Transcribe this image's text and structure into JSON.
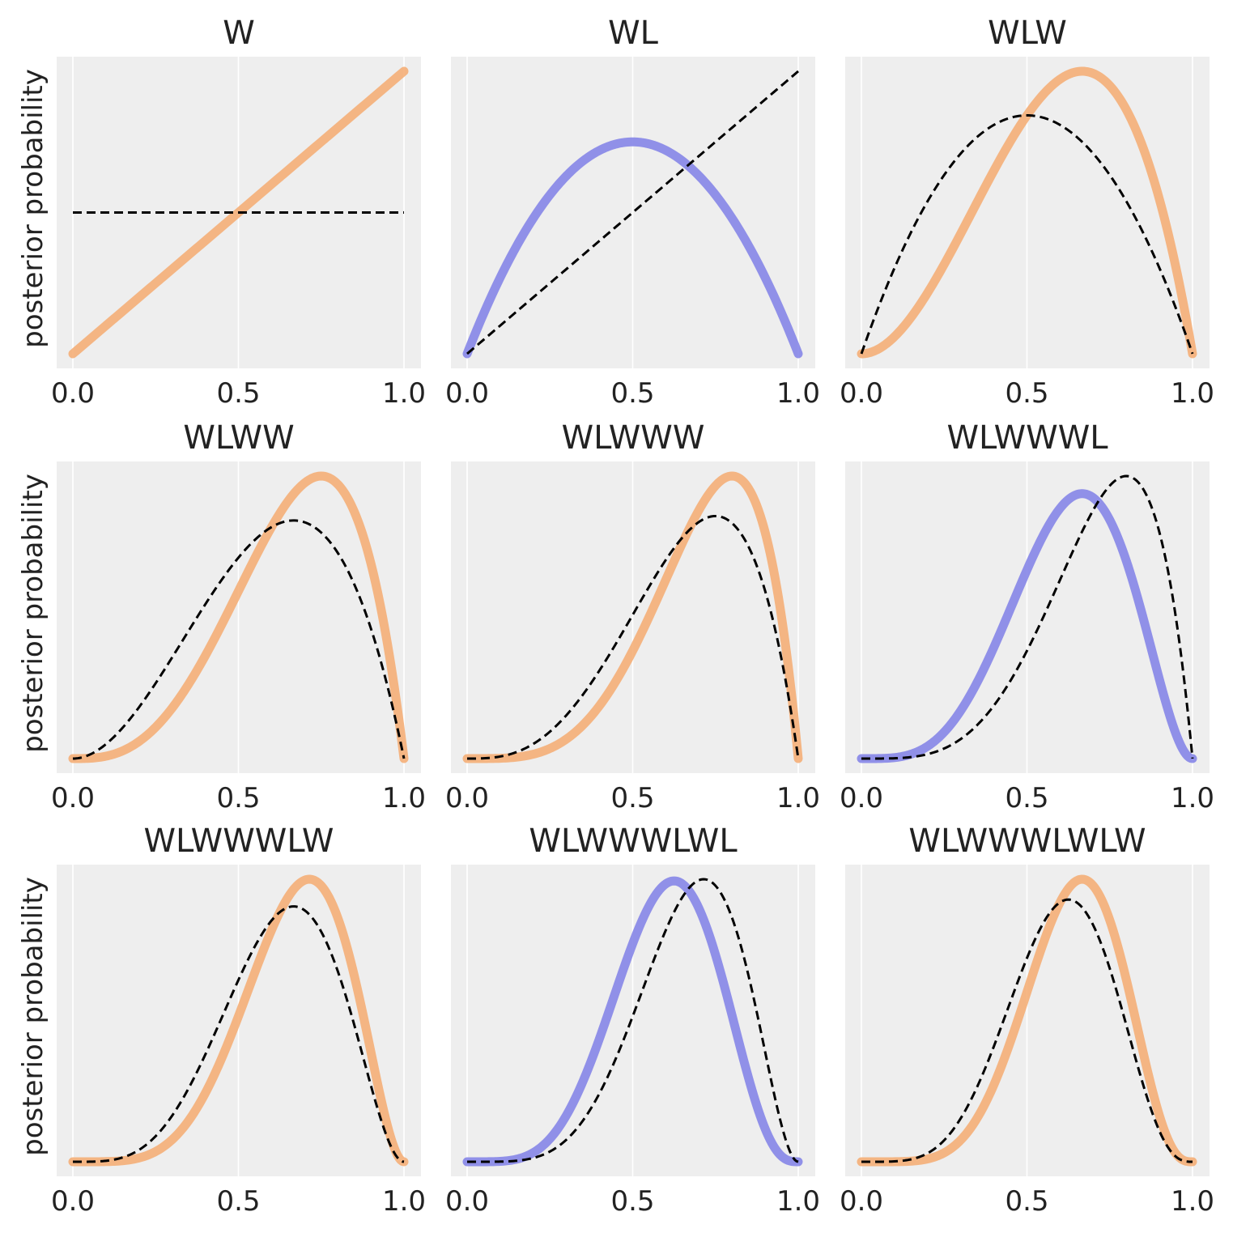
{
  "chart_data": [
    {
      "type": "line",
      "title": "W",
      "ylabel": "posterior probability",
      "xlim": [
        0,
        1
      ],
      "xticks": [
        "0.0",
        "0.5",
        "1.0"
      ],
      "grid": true,
      "observation": "W",
      "prior": {
        "w": 0,
        "l": 0
      },
      "posterior": {
        "w": 1,
        "l": 0
      },
      "curve_color": "#f4aa70",
      "prior_color": "#000000"
    },
    {
      "type": "line",
      "title": "WL",
      "ylabel": "",
      "xlim": [
        0,
        1
      ],
      "xticks": [
        "0.0",
        "0.5",
        "1.0"
      ],
      "grid": true,
      "observation": "L",
      "prior": {
        "w": 1,
        "l": 0
      },
      "posterior": {
        "w": 1,
        "l": 1
      },
      "curve_color": "#7f7fe6",
      "prior_color": "#000000"
    },
    {
      "type": "line",
      "title": "WLW",
      "ylabel": "",
      "xlim": [
        0,
        1
      ],
      "xticks": [
        "0.0",
        "0.5",
        "1.0"
      ],
      "grid": true,
      "observation": "W",
      "prior": {
        "w": 1,
        "l": 1
      },
      "posterior": {
        "w": 2,
        "l": 1
      },
      "curve_color": "#f4aa70",
      "prior_color": "#000000"
    },
    {
      "type": "line",
      "title": "WLWW",
      "ylabel": "posterior probability",
      "xlim": [
        0,
        1
      ],
      "xticks": [
        "0.0",
        "0.5",
        "1.0"
      ],
      "grid": true,
      "observation": "W",
      "prior": {
        "w": 2,
        "l": 1
      },
      "posterior": {
        "w": 3,
        "l": 1
      },
      "curve_color": "#f4aa70",
      "prior_color": "#000000"
    },
    {
      "type": "line",
      "title": "WLWWW",
      "ylabel": "",
      "xlim": [
        0,
        1
      ],
      "xticks": [
        "0.0",
        "0.5",
        "1.0"
      ],
      "grid": true,
      "observation": "W",
      "prior": {
        "w": 3,
        "l": 1
      },
      "posterior": {
        "w": 4,
        "l": 1
      },
      "curve_color": "#f4aa70",
      "prior_color": "#000000"
    },
    {
      "type": "line",
      "title": "WLWWWL",
      "ylabel": "",
      "xlim": [
        0,
        1
      ],
      "xticks": [
        "0.0",
        "0.5",
        "1.0"
      ],
      "grid": true,
      "observation": "L",
      "prior": {
        "w": 4,
        "l": 1
      },
      "posterior": {
        "w": 4,
        "l": 2
      },
      "curve_color": "#7f7fe6",
      "prior_color": "#000000"
    },
    {
      "type": "line",
      "title": "WLWWWLW",
      "ylabel": "posterior probability",
      "xlim": [
        0,
        1
      ],
      "xticks": [
        "0.0",
        "0.5",
        "1.0"
      ],
      "grid": true,
      "observation": "W",
      "prior": {
        "w": 4,
        "l": 2
      },
      "posterior": {
        "w": 5,
        "l": 2
      },
      "curve_color": "#f4aa70",
      "prior_color": "#000000"
    },
    {
      "type": "line",
      "title": "WLWWWLWL",
      "ylabel": "",
      "xlim": [
        0,
        1
      ],
      "xticks": [
        "0.0",
        "0.5",
        "1.0"
      ],
      "grid": true,
      "observation": "L",
      "prior": {
        "w": 5,
        "l": 2
      },
      "posterior": {
        "w": 5,
        "l": 3
      },
      "curve_color": "#7f7fe6",
      "prior_color": "#000000"
    },
    {
      "type": "line",
      "title": "WLWWWLWLW",
      "ylabel": "",
      "xlim": [
        0,
        1
      ],
      "xticks": [
        "0.0",
        "0.5",
        "1.0"
      ],
      "grid": true,
      "observation": "W",
      "prior": {
        "w": 5,
        "l": 3
      },
      "posterior": {
        "w": 6,
        "l": 3
      },
      "curve_color": "#f4aa70",
      "prior_color": "#000000"
    }
  ]
}
